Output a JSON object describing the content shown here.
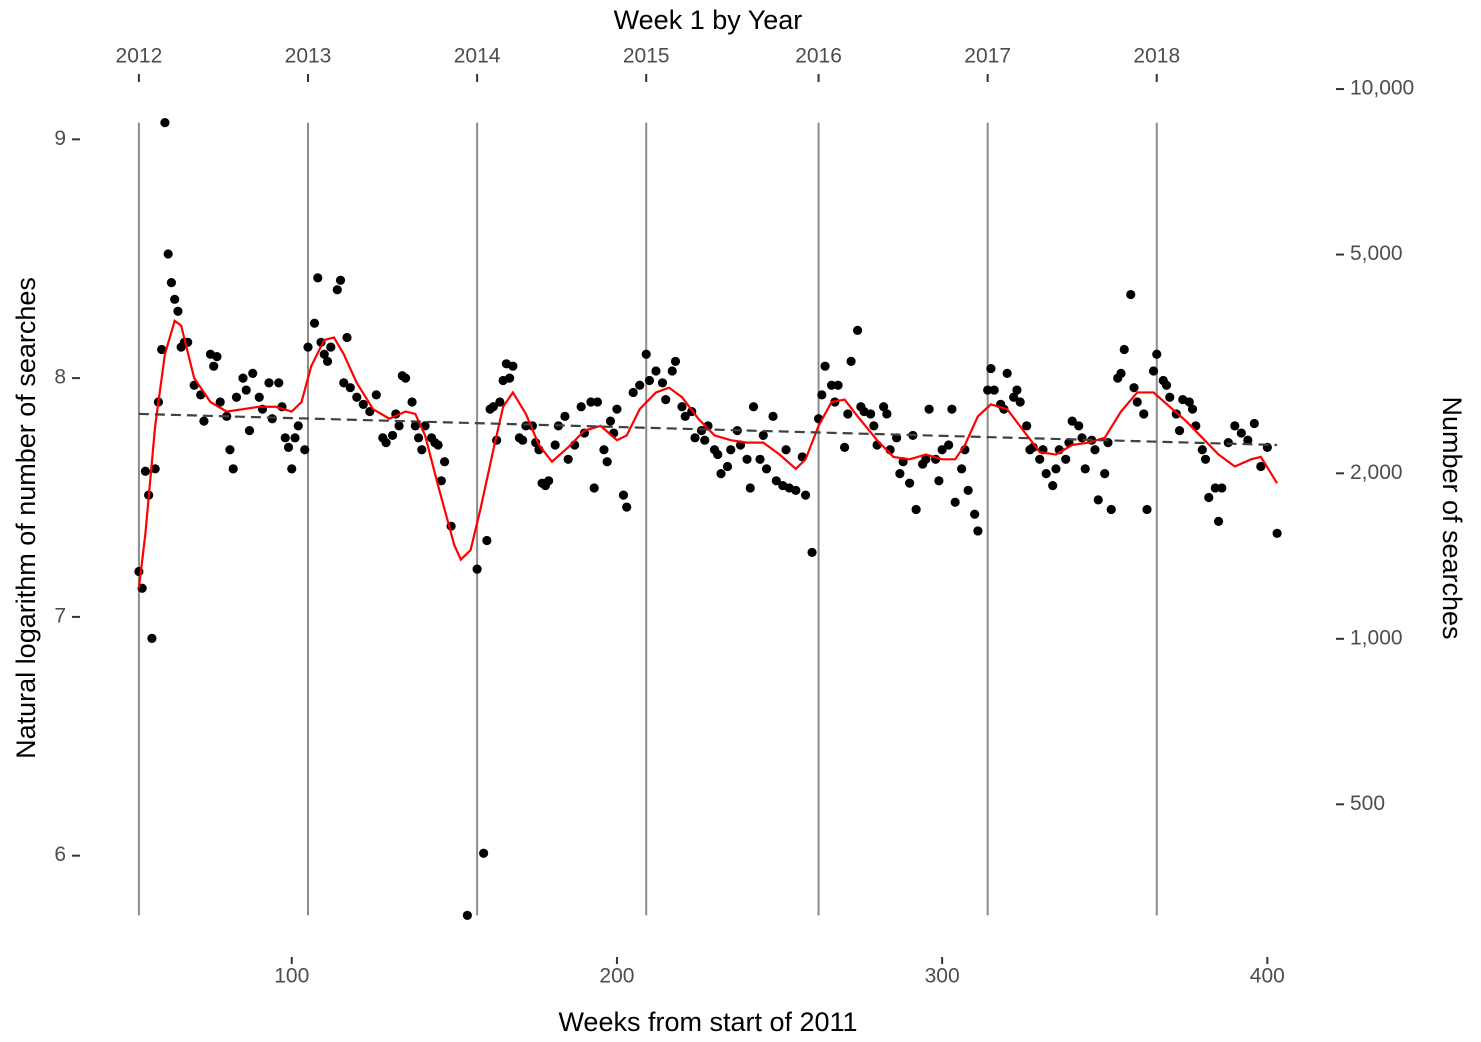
{
  "chart_data": {
    "type": "scatter",
    "x_label": "Weeks from start of 2011",
    "y_label": "Natural logarithm of number of searches",
    "y2_label": "Number of searches",
    "x2_label": "Week 1 by Year",
    "xlim": [
      35.5,
      420.5
    ],
    "xticks": [
      100,
      200,
      300,
      400
    ],
    "ylim": [
      5.584,
      9.236
    ],
    "yticks": [
      6,
      7,
      8,
      9
    ],
    "y2lim": [
      266,
      10257
    ],
    "y2_log": true,
    "y2ticks": [
      500,
      {
        "value": 1000,
        "label": "1,000"
      },
      {
        "value": 2000,
        "label": "2,000"
      },
      {
        "value": 5000,
        "label": "5,000"
      },
      {
        "value": 10000,
        "label": "10,000"
      }
    ],
    "x2ticks": [
      {
        "value": 53,
        "label": "2012"
      },
      {
        "value": 105,
        "label": "2013"
      },
      {
        "value": 157,
        "label": "2014"
      },
      {
        "value": 209,
        "label": "2015"
      },
      {
        "value": 262,
        "label": "2016"
      },
      {
        "value": 314,
        "label": "2017"
      },
      {
        "value": 366,
        "label": "2018"
      }
    ],
    "x2_vlines": true,
    "series": [
      {
        "type": "scatter",
        "color": "#000000",
        "x": [
          53,
          54,
          55,
          56,
          57,
          58,
          59,
          60,
          61,
          62,
          63,
          64,
          65,
          66,
          67,
          68,
          70,
          72,
          73,
          75,
          76,
          77,
          78,
          80,
          81,
          82,
          83,
          85,
          86,
          87,
          88,
          90,
          91,
          93,
          94,
          96,
          97,
          98,
          99,
          100,
          101,
          102,
          104,
          105,
          107,
          108,
          109,
          110,
          111,
          112,
          114,
          115,
          116,
          117,
          118,
          120,
          122,
          124,
          126,
          128,
          129,
          131,
          132,
          133,
          134,
          135,
          137,
          138,
          139,
          140,
          141,
          143,
          144,
          145,
          146,
          147,
          149,
          154,
          157,
          159,
          160,
          161,
          162,
          163,
          164,
          165,
          166,
          167,
          168,
          170,
          171,
          172,
          174,
          175,
          176,
          177,
          178,
          179,
          181,
          182,
          184,
          185,
          187,
          189,
          190,
          192,
          193,
          194,
          196,
          197,
          198,
          199,
          200,
          202,
          203,
          205,
          207,
          209,
          210,
          212,
          214,
          215,
          217,
          218,
          220,
          221,
          223,
          224,
          226,
          227,
          228,
          230,
          231,
          232,
          234,
          235,
          237,
          238,
          240,
          241,
          242,
          244,
          245,
          246,
          248,
          249,
          251,
          252,
          253,
          255,
          257,
          258,
          260,
          262,
          263,
          264,
          266,
          267,
          268,
          270,
          271,
          272,
          274,
          275,
          276,
          278,
          279,
          280,
          282,
          283,
          284,
          286,
          287,
          288,
          290,
          291,
          292,
          294,
          295,
          296,
          298,
          299,
          300,
          302,
          303,
          304,
          306,
          307,
          308,
          310,
          311,
          314,
          315,
          316,
          318,
          319,
          320,
          322,
          323,
          324,
          326,
          327,
          328,
          330,
          331,
          332,
          334,
          335,
          336,
          338,
          339,
          340,
          342,
          343,
          344,
          346,
          347,
          348,
          350,
          351,
          352,
          354,
          355,
          356,
          358,
          359,
          360,
          362,
          363,
          365,
          366,
          368,
          369,
          370,
          372,
          373,
          374,
          376,
          377,
          378,
          380,
          381,
          382,
          384,
          385,
          386,
          388,
          390,
          392,
          394,
          396,
          398,
          400,
          403
        ],
        "values": [
          7.19,
          7.12,
          7.61,
          7.51,
          6.91,
          7.62,
          7.9,
          8.12,
          9.07,
          8.52,
          8.4,
          8.33,
          8.28,
          8.13,
          8.15,
          8.15,
          7.97,
          7.93,
          7.82,
          8.1,
          8.05,
          8.09,
          7.9,
          7.84,
          7.7,
          7.62,
          7.92,
          8.0,
          7.95,
          7.78,
          8.02,
          7.92,
          7.87,
          7.98,
          7.83,
          7.98,
          7.88,
          7.75,
          7.71,
          7.62,
          7.75,
          7.8,
          7.7,
          8.13,
          8.23,
          8.42,
          8.15,
          8.1,
          8.07,
          8.13,
          8.37,
          8.41,
          7.98,
          8.17,
          7.96,
          7.92,
          7.89,
          7.86,
          7.93,
          7.75,
          7.73,
          7.76,
          7.85,
          7.8,
          8.01,
          8.0,
          7.9,
          7.8,
          7.75,
          7.7,
          7.8,
          7.75,
          7.73,
          7.72,
          7.57,
          7.65,
          7.38,
          5.75,
          7.2,
          6.01,
          7.32,
          7.87,
          7.88,
          7.74,
          7.9,
          7.99,
          8.06,
          8.0,
          8.05,
          7.75,
          7.74,
          7.8,
          7.8,
          7.73,
          7.7,
          7.56,
          7.55,
          7.57,
          7.72,
          7.8,
          7.84,
          7.66,
          7.72,
          7.88,
          7.77,
          7.9,
          7.54,
          7.9,
          7.7,
          7.65,
          7.82,
          7.77,
          7.87,
          7.51,
          7.46,
          7.94,
          7.97,
          8.1,
          7.99,
          8.03,
          7.98,
          7.91,
          8.03,
          8.07,
          7.88,
          7.84,
          7.86,
          7.75,
          7.78,
          7.74,
          7.8,
          7.7,
          7.68,
          7.6,
          7.63,
          7.7,
          7.78,
          7.72,
          7.66,
          7.54,
          7.88,
          7.66,
          7.76,
          7.62,
          7.84,
          7.57,
          7.55,
          7.7,
          7.54,
          7.53,
          7.67,
          7.51,
          7.27,
          7.83,
          7.93,
          8.05,
          7.97,
          7.9,
          7.97,
          7.71,
          7.85,
          8.07,
          8.2,
          7.88,
          7.86,
          7.85,
          7.8,
          7.72,
          7.88,
          7.85,
          7.7,
          7.75,
          7.6,
          7.65,
          7.56,
          7.76,
          7.45,
          7.64,
          7.66,
          7.87,
          7.66,
          7.57,
          7.7,
          7.72,
          7.87,
          7.48,
          7.62,
          7.7,
          7.53,
          7.43,
          7.36,
          7.95,
          8.04,
          7.95,
          7.89,
          7.87,
          8.02,
          7.92,
          7.95,
          7.9,
          7.8,
          7.7,
          7.71,
          7.66,
          7.7,
          7.6,
          7.55,
          7.62,
          7.7,
          7.66,
          7.73,
          7.82,
          7.8,
          7.75,
          7.62,
          7.74,
          7.7,
          7.49,
          7.6,
          7.73,
          7.45,
          8.0,
          8.02,
          8.12,
          8.35,
          7.96,
          7.9,
          7.85,
          7.45,
          8.03,
          8.1,
          7.99,
          7.97,
          7.92,
          7.85,
          7.78,
          7.91,
          7.9,
          7.87,
          7.8,
          7.7,
          7.66,
          7.5,
          7.54,
          7.4,
          7.54,
          7.73,
          7.8,
          7.77,
          7.74,
          7.81,
          7.63,
          7.71,
          7.35
        ]
      },
      {
        "type": "line",
        "color": "#ff0000",
        "x": [
          53,
          55,
          58,
          61,
          64,
          66,
          70,
          75,
          80,
          85,
          90,
          95,
          100,
          103,
          106,
          110,
          113,
          116,
          120,
          125,
          130,
          135,
          138,
          141,
          145,
          150,
          152,
          155,
          158,
          162,
          165,
          168,
          172,
          176,
          180,
          185,
          190,
          195,
          200,
          203,
          207,
          212,
          216,
          220,
          225,
          230,
          235,
          240,
          245,
          250,
          255,
          258,
          262,
          266,
          270,
          274,
          280,
          285,
          290,
          295,
          300,
          304,
          307,
          311,
          315,
          320,
          325,
          330,
          335,
          340,
          345,
          350,
          355,
          360,
          365,
          370,
          375,
          380,
          385,
          390,
          395,
          398,
          403
        ],
        "values": [
          7.12,
          7.35,
          7.8,
          8.1,
          8.24,
          8.22,
          8.0,
          7.9,
          7.86,
          7.87,
          7.88,
          7.88,
          7.86,
          7.9,
          8.05,
          8.16,
          8.17,
          8.1,
          7.98,
          7.87,
          7.83,
          7.86,
          7.85,
          7.76,
          7.55,
          7.3,
          7.24,
          7.28,
          7.45,
          7.7,
          7.88,
          7.94,
          7.85,
          7.72,
          7.65,
          7.71,
          7.78,
          7.8,
          7.74,
          7.76,
          7.87,
          7.94,
          7.96,
          7.92,
          7.83,
          7.76,
          7.74,
          7.73,
          7.73,
          7.68,
          7.62,
          7.66,
          7.8,
          7.9,
          7.91,
          7.84,
          7.74,
          7.67,
          7.66,
          7.68,
          7.66,
          7.66,
          7.72,
          7.84,
          7.89,
          7.87,
          7.78,
          7.69,
          7.68,
          7.72,
          7.73,
          7.75,
          7.86,
          7.94,
          7.94,
          7.88,
          7.82,
          7.75,
          7.68,
          7.63,
          7.66,
          7.67,
          7.56
        ]
      },
      {
        "type": "line",
        "color": "#404040",
        "dashed": true,
        "x": [
          53,
          403
        ],
        "values": [
          7.85,
          7.72
        ]
      }
    ]
  }
}
